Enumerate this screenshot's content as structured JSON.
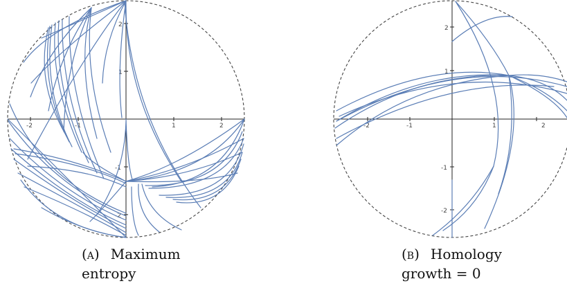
{
  "colors": {
    "curve": "#5a7db5",
    "boundary": "#444444",
    "axis": "#222222"
  },
  "panels": [
    {
      "caption_label": "(a)",
      "caption_line1": "Maximum",
      "caption_line2": "entropy",
      "x_ticks": [
        "-2",
        "-1",
        "1",
        "2"
      ],
      "y_ticks": [
        "2",
        "1",
        "-1",
        "-2"
      ]
    },
    {
      "caption_label": "(b)",
      "caption_line1": "Homology",
      "caption_line2": "growth = 0",
      "x_ticks": [
        "-2",
        "-1",
        "1",
        "2"
      ],
      "y_ticks": [
        "2",
        "1",
        "-1",
        "-2"
      ]
    }
  ]
}
